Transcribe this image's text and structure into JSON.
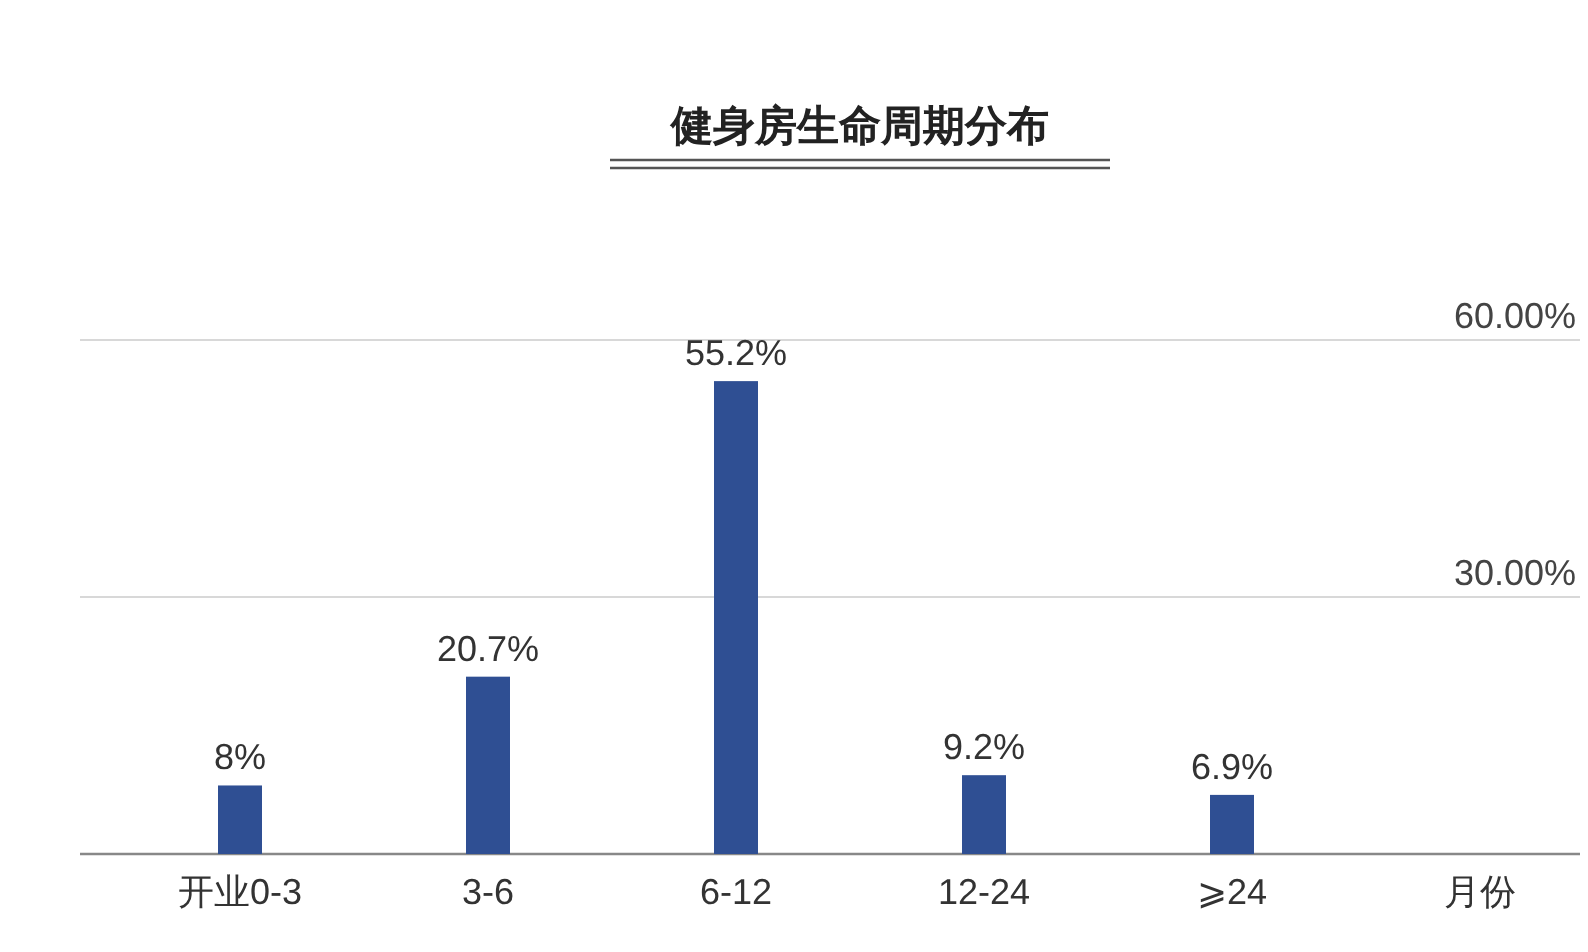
{
  "chart_data": {
    "type": "bar",
    "title": "健身房生命周期分布",
    "xlabel": "月份",
    "categories": [
      "开业0-3",
      "3-6",
      "6-12",
      "12-24",
      "⩾24"
    ],
    "values": [
      8,
      20.7,
      55.2,
      9.2,
      6.9
    ],
    "value_labels": [
      "8%",
      "20.7%",
      "55.2%",
      "9.2%",
      "6.9%"
    ],
    "color": "#2f4f93",
    "ylim": [
      0,
      60
    ],
    "yticks": [
      {
        "value": 0,
        "label": null
      },
      {
        "value": 30,
        "label": "30.00%"
      },
      {
        "value": 60,
        "label": "60.00%"
      }
    ],
    "grid": "y"
  }
}
